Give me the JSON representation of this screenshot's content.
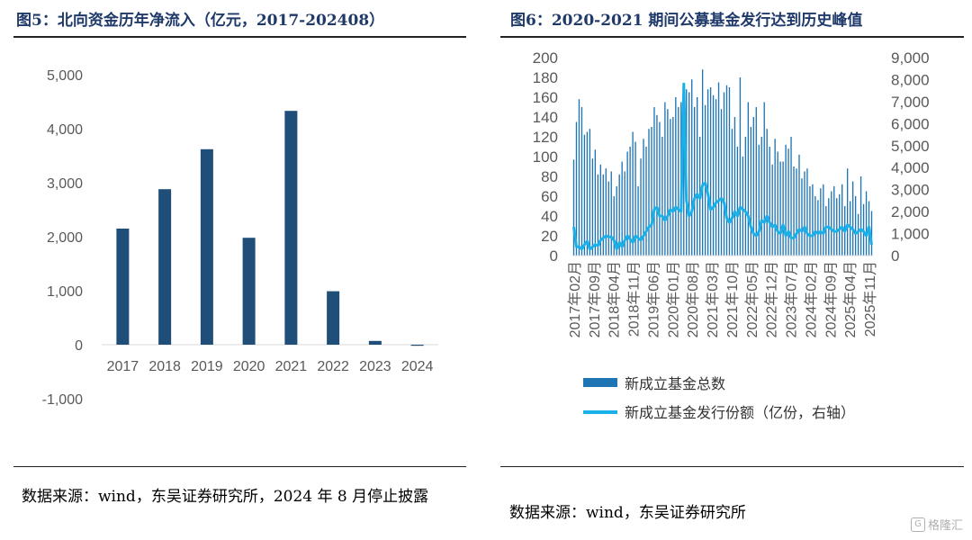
{
  "left": {
    "title": "图5：北向资金历年净流入（亿元，2017-202408）",
    "source": "数据来源：wind，东吴证券研究所，2024 年 8 月停止披露"
  },
  "right": {
    "title": "图6：2020-2021 期间公募基金发行达到历史峰值",
    "source": "数据来源：wind，东吴证券研究所"
  },
  "watermark": {
    "label": "格隆汇",
    "icon": "g-logo-icon"
  },
  "colors": {
    "bar": "#1f4e79",
    "count_bar": "#1f74b4",
    "amount_line": "#1ab0e8"
  },
  "chart_data": [
    {
      "type": "bar",
      "title": "",
      "categories": [
        "2017",
        "2018",
        "2019",
        "2020",
        "2021",
        "2022",
        "2023",
        "2024"
      ],
      "values": [
        2150,
        2880,
        3620,
        1980,
        4330,
        990,
        70,
        -20
      ],
      "ylim": [
        -1000,
        5000
      ],
      "yticks": [
        "-1,000",
        "0",
        "1,000",
        "2,000",
        "3,000",
        "4,000",
        "5,000"
      ],
      "ytick_values": [
        -1000,
        0,
        1000,
        2000,
        3000,
        4000,
        5000
      ]
    },
    {
      "type": "bar+line",
      "title": "",
      "x_start": "2017-01",
      "x_tick_labels": [
        "2017年02月",
        "2017年09月",
        "2018年04月",
        "2018年11月",
        "2019年06月",
        "2020年01月",
        "2020年08月",
        "2021年03月",
        "2021年10月",
        "2022年05月",
        "2022年12月",
        "2023年07月",
        "2024年02月",
        "2024年09月",
        "2025年04月",
        "2025年11月"
      ],
      "left_ylim": [
        0,
        200
      ],
      "left_yticks": [
        "0",
        "20",
        "40",
        "60",
        "80",
        "100",
        "120",
        "140",
        "160",
        "180",
        "200"
      ],
      "right_ylim": [
        0,
        9000
      ],
      "right_yticks": [
        "0",
        "1,000",
        "2,000",
        "3,000",
        "4,000",
        "5,000",
        "6,000",
        "7,000",
        "8,000",
        "9,000"
      ],
      "series": [
        {
          "name": "新成立基金总数",
          "type": "bar",
          "axis": "left",
          "values": [
            97,
            135,
            158,
            150,
            122,
            125,
            128,
            98,
            107,
            82,
            92,
            82,
            88,
            75,
            85,
            60,
            70,
            82,
            95,
            85,
            105,
            110,
            125,
            115,
            70,
            98,
            118,
            110,
            128,
            130,
            150,
            142,
            135,
            120,
            155,
            148,
            138,
            140,
            160,
            150,
            155,
            170,
            168,
            165,
            178,
            150,
            160,
            120,
            188,
            152,
            168,
            170,
            162,
            158,
            175,
            148,
            165,
            172,
            170,
            128,
            140,
            110,
            180,
            100,
            120,
            155,
            130,
            140,
            150,
            112,
            120,
            155,
            128,
            110,
            92,
            118,
            105,
            95,
            95,
            112,
            108,
            120,
            90,
            88,
            102,
            78,
            85,
            88,
            70,
            72,
            60,
            56,
            68,
            72,
            50,
            58,
            65,
            70,
            58,
            62,
            72,
            50,
            88,
            55,
            75,
            60,
            42,
            80,
            52,
            65,
            55,
            45
          ]
        },
        {
          "name": "新成立基金发行份额（亿份，右轴）",
          "type": "line",
          "axis": "right",
          "values": [
            1300,
            400,
            400,
            300,
            500,
            650,
            300,
            400,
            500,
            450,
            700,
            800,
            900,
            850,
            850,
            700,
            300,
            600,
            400,
            700,
            900,
            750,
            600,
            900,
            800,
            700,
            900,
            1100,
            1300,
            1400,
            2100,
            2200,
            1800,
            1800,
            1600,
            1800,
            2100,
            2000,
            2200,
            2100,
            2000,
            7800,
            2500,
            1800,
            2000,
            2600,
            2800,
            2600,
            3200,
            3300,
            2800,
            2100,
            2200,
            2400,
            2500,
            2600,
            2400,
            1700,
            1500,
            1700,
            2000,
            1800,
            2200,
            2100,
            2000,
            1800,
            1300,
            1000,
            900,
            1100,
            1600,
            1500,
            1800,
            1500,
            1300,
            1400,
            1100,
            1000,
            1400,
            900,
            1100,
            800,
            800,
            1000,
            1200,
            1100,
            1300,
            1000,
            900,
            900,
            1100,
            1000,
            1100,
            1000,
            1300,
            1300,
            1200,
            1100,
            1100,
            1200,
            1300,
            1100,
            1400,
            1300,
            1200,
            1000,
            1100,
            1200,
            1100,
            900,
            1300,
            500
          ]
        }
      ],
      "legend_position": "bottom"
    }
  ]
}
